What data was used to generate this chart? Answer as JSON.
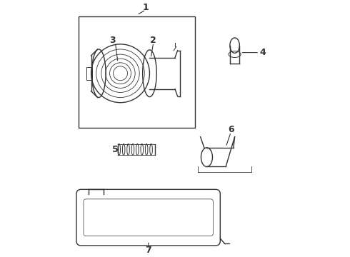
{
  "bg_color": "#ffffff",
  "line_color": "#333333",
  "figsize": [
    4.9,
    3.6
  ],
  "dpi": 100
}
